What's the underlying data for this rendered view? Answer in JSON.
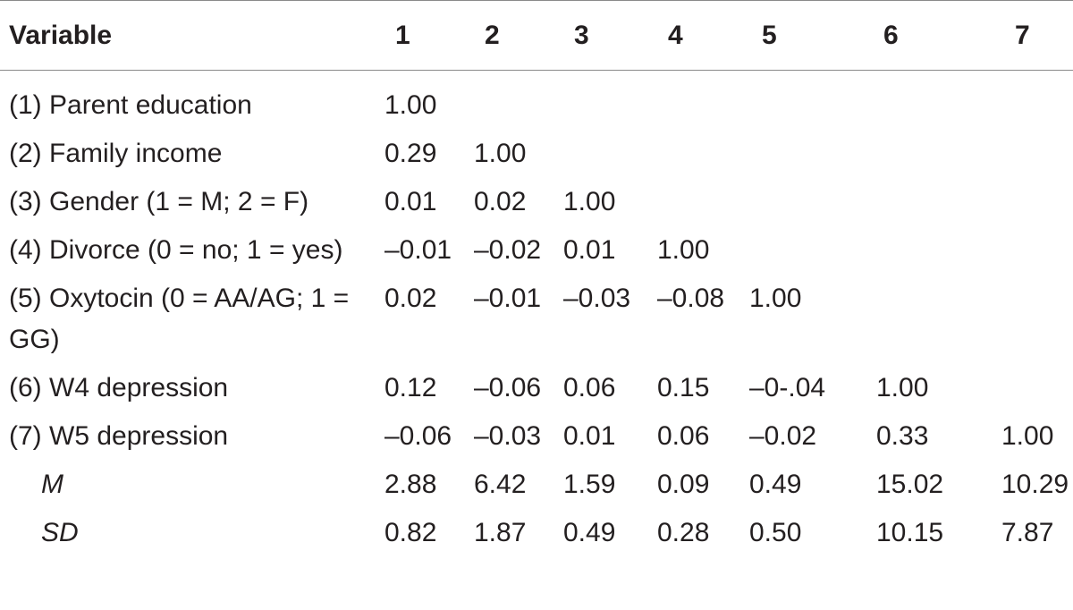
{
  "table": {
    "headers": [
      "Variable",
      "1",
      "2",
      "3",
      "4",
      "5",
      "6",
      "7"
    ],
    "rows": [
      {
        "label": "(1) Parent education",
        "values": [
          "1.00",
          "",
          "",
          "",
          "",
          "",
          ""
        ]
      },
      {
        "label": "(2) Family income",
        "values": [
          "0.29",
          "1.00",
          "",
          "",
          "",
          "",
          ""
        ]
      },
      {
        "label": "(3) Gender (1 = M; 2 = F)",
        "values": [
          "0.01",
          "0.02",
          "1.00",
          "",
          "",
          "",
          ""
        ]
      },
      {
        "label": "(4) Divorce (0 = no; 1 = yes)",
        "values": [
          "–0.01",
          "–0.02",
          "0.01",
          "1.00",
          "",
          "",
          ""
        ]
      },
      {
        "label": "(5) Oxytocin (0 = AA/AG; 1 = GG)",
        "values": [
          "0.02",
          "–0.01",
          "–0.03",
          "–0.08",
          "1.00",
          "",
          ""
        ]
      },
      {
        "label": "(6) W4 depression",
        "values": [
          "0.12",
          "–0.06",
          "0.06",
          "0.15",
          "–0-.04",
          "1.00",
          ""
        ]
      },
      {
        "label": "(7) W5 depression",
        "values": [
          "–0.06",
          "–0.03",
          "0.01",
          "0.06",
          "–0.02",
          "0.33",
          "1.00"
        ]
      },
      {
        "label": "M",
        "italic": true,
        "values": [
          "2.88",
          "6.42",
          "1.59",
          "0.09",
          "0.49",
          "15.02",
          "10.29"
        ]
      },
      {
        "label": "SD",
        "italic": true,
        "values": [
          "0.82",
          "1.87",
          "0.49",
          "0.28",
          "0.50",
          "10.15",
          "7.87"
        ]
      }
    ]
  }
}
